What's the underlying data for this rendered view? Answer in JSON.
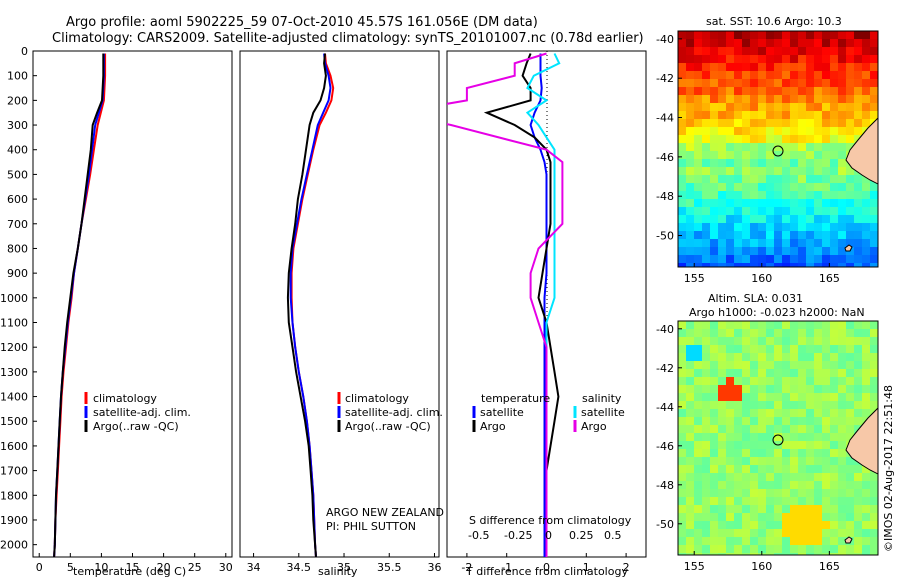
{
  "header": {
    "line1": "Argo profile: aoml 5902225_59 07-Oct-2010 45.57S 161.056E (DM data)",
    "line2": "Climatology: CARS2009. Satellite-adjusted climatology: synTS_20101007.nc (0.78d earlier)"
  },
  "colors": {
    "climatology": "#ff0000",
    "satellite": "#0000ff",
    "argo": "#000000",
    "salinity_satellite": "#00e5ff",
    "salinity_argo": "#e600e6"
  },
  "chart_data": [
    {
      "type": "line",
      "id": "temperature",
      "xlabel": "temperature (deg C)",
      "xlim": [
        -1,
        31
      ],
      "ylim": [
        2050,
        0
      ],
      "xticks": [
        0,
        5,
        10,
        15,
        20,
        25,
        30
      ],
      "yticks": [
        0,
        100,
        200,
        300,
        400,
        500,
        600,
        700,
        800,
        900,
        1000,
        1100,
        1200,
        1300,
        1400,
        1500,
        1600,
        1700,
        1800,
        1900,
        2000
      ],
      "legend": [
        "climatology",
        "satellite-adj. clim.",
        "Argo(..raw -QC)"
      ],
      "depth": [
        10,
        100,
        200,
        250,
        300,
        400,
        500,
        600,
        700,
        800,
        900,
        1000,
        1100,
        1200,
        1300,
        1400,
        1500,
        1600,
        1700,
        1800,
        1900,
        2000,
        2050
      ],
      "series": [
        {
          "name": "climatology",
          "values": [
            10.6,
            10.6,
            10.4,
            9.9,
            9.4,
            8.8,
            8.2,
            7.5,
            6.8,
            6.2,
            5.6,
            5.2,
            4.7,
            4.3,
            3.9,
            3.6,
            3.4,
            3.2,
            3.0,
            2.8,
            2.6,
            2.5,
            2.4
          ]
        },
        {
          "name": "satellite-adj. clim.",
          "values": [
            10.4,
            10.4,
            10.2,
            9.6,
            9.0,
            8.5,
            8.0,
            7.4,
            6.8,
            6.2,
            5.6,
            5.1,
            4.6,
            4.2,
            3.8,
            3.5,
            3.3,
            3.1,
            2.9,
            2.7,
            2.6,
            2.5,
            2.4
          ]
        },
        {
          "name": "Argo(..raw -QC)",
          "values": [
            10.3,
            10.3,
            10.1,
            9.3,
            8.6,
            8.3,
            7.8,
            7.3,
            6.8,
            6.2,
            5.5,
            5.0,
            4.5,
            4.1,
            3.8,
            3.5,
            3.3,
            3.1,
            2.9,
            2.7,
            2.6,
            2.5,
            2.4
          ]
        }
      ]
    },
    {
      "type": "line",
      "id": "salinity",
      "xlabel": "salinity",
      "xlim": [
        33.85,
        36.05
      ],
      "ylim": [
        2050,
        0
      ],
      "xticks": [
        34,
        34.5,
        35,
        35.5,
        36
      ],
      "legend": [
        "climatology",
        "satellite-adj. clim.",
        "Argo(..raw -QC)"
      ],
      "annotation": [
        "ARGO NEW ZEALAND",
        "PI: PHIL SUTTON"
      ],
      "depth": [
        10,
        50,
        100,
        150,
        200,
        250,
        300,
        400,
        500,
        600,
        700,
        800,
        900,
        1000,
        1100,
        1200,
        1300,
        1400,
        1500,
        1600,
        1700,
        1800,
        1900,
        2000,
        2050
      ],
      "series": [
        {
          "name": "climatology",
          "values": [
            34.79,
            34.8,
            34.85,
            34.88,
            34.86,
            34.8,
            34.73,
            34.66,
            34.6,
            34.54,
            34.49,
            34.44,
            34.42,
            34.42,
            34.43,
            34.46,
            34.5,
            34.55,
            34.59,
            34.62,
            34.64,
            34.66,
            34.67,
            34.68,
            34.69
          ]
        },
        {
          "name": "satellite-adj. clim.",
          "values": [
            34.78,
            34.79,
            34.83,
            34.85,
            34.83,
            34.77,
            34.71,
            34.65,
            34.59,
            34.53,
            34.48,
            34.43,
            34.41,
            34.41,
            34.43,
            34.46,
            34.5,
            34.55,
            34.59,
            34.62,
            34.64,
            34.66,
            34.67,
            34.68,
            34.69
          ]
        },
        {
          "name": "Argo(..raw -QC)",
          "values": [
            34.79,
            34.78,
            34.8,
            34.78,
            34.74,
            34.66,
            34.62,
            34.58,
            34.54,
            34.49,
            34.46,
            34.42,
            34.39,
            34.38,
            34.39,
            34.43,
            34.47,
            34.52,
            34.57,
            34.61,
            34.63,
            34.65,
            34.66,
            34.68,
            34.69
          ]
        }
      ]
    },
    {
      "type": "line",
      "id": "differences",
      "xlabel": "T difference from climatology",
      "xlim": [
        -2.5,
        2.5
      ],
      "ylim": [
        2050,
        0
      ],
      "xticks": [
        -2,
        -1,
        0,
        1,
        2
      ],
      "top_xlabel": "S difference from climatology",
      "top_xticks": [
        "-0.5",
        "-0.25",
        "0",
        "0.25",
        "0.5"
      ],
      "legend_temperature": {
        "title": "temperature",
        "items": [
          "satellite",
          "Argo"
        ]
      },
      "legend_salinity": {
        "title": "salinity",
        "items": [
          "satellite",
          "Argo"
        ]
      },
      "depth": [
        10,
        50,
        100,
        150,
        200,
        250,
        300,
        350,
        400,
        450,
        500,
        600,
        700,
        800,
        900,
        1000,
        1100,
        1200,
        1300,
        1400,
        1500,
        1600,
        1700,
        1800,
        1900,
        2000,
        2050
      ],
      "series": [
        {
          "name": "temperature satellite",
          "values": [
            -0.15,
            -0.15,
            -0.15,
            -0.12,
            -0.15,
            -0.3,
            -0.4,
            -0.3,
            -0.15,
            -0.05,
            0.0,
            0.0,
            0.0,
            0.0,
            0.0,
            -0.05,
            -0.05,
            -0.05,
            -0.05,
            -0.05,
            -0.05,
            -0.05,
            -0.05,
            -0.05,
            -0.05,
            -0.05,
            -0.05
          ]
        },
        {
          "name": "temperature Argo",
          "values": [
            -0.4,
            -0.5,
            -0.6,
            -0.4,
            -0.4,
            -1.5,
            -0.8,
            -0.3,
            0.0,
            0.1,
            0.1,
            0.1,
            0.1,
            0.0,
            -0.1,
            -0.2,
            0.0,
            0.1,
            0.2,
            0.3,
            0.2,
            0.1,
            0.0,
            0.0,
            0.0,
            0.0,
            0.0
          ]
        },
        {
          "name": "salinity satellite",
          "values": [
            0.05,
            0.08,
            -0.08,
            -0.12,
            0.0,
            -0.12,
            -0.05,
            0.0,
            0.05,
            0.05,
            0.05,
            0.05,
            0.05,
            0.05,
            0.05,
            0.05,
            0.0,
            0.0,
            0.0,
            0.0,
            0.0,
            0.0,
            0.0,
            0.0,
            0.0,
            0.0,
            0.0
          ]
        },
        {
          "name": "salinity Argo",
          "values": [
            0.0,
            -0.2,
            -0.2,
            -0.5,
            -0.5,
            -0.95,
            -0.6,
            -0.3,
            0.0,
            0.1,
            0.1,
            0.1,
            0.1,
            -0.05,
            -0.1,
            -0.1,
            -0.05,
            0.0,
            0.0,
            0.0,
            0.0,
            0.0,
            0.0,
            0.0,
            0.0,
            0.0,
            0.0
          ]
        }
      ]
    },
    {
      "type": "heatmap",
      "id": "sst_map",
      "title": "sat. SST: 10.6  Argo: 10.3",
      "xticks": [
        155,
        160,
        165
      ],
      "yticks": [
        -40,
        -42,
        -44,
        -46,
        -48,
        -50
      ],
      "xlim": [
        153.8,
        168.6
      ],
      "ylim": [
        -51.6,
        -39.6
      ],
      "argo_position": [
        161.056,
        -45.57
      ]
    },
    {
      "type": "heatmap",
      "id": "sla_map",
      "title_line1": "Altim. SLA: 0.031",
      "title_line2": "Argo h1000: -0.023 h2000: NaN",
      "xticks": [
        155,
        160,
        165
      ],
      "yticks": [
        -40,
        -42,
        -44,
        -46,
        -48,
        -50
      ],
      "xlim": [
        153.8,
        168.6
      ],
      "ylim": [
        -51.6,
        -39.6
      ],
      "argo_position": [
        161.056,
        -45.57
      ]
    }
  ],
  "credit": "©IMOS 02-Aug-2017 22:51:48"
}
